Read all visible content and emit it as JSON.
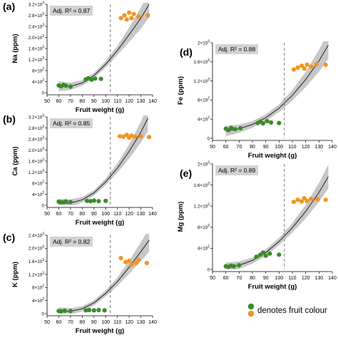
{
  "legend": {
    "colors": [
      "#3b8a2a",
      "#f29420"
    ],
    "label": "denotes fruit colour"
  },
  "style": {
    "green": "#3b8a2a",
    "orange": "#f29420",
    "ci_band": "#bdbdbd",
    "annotation_box": "#d3d3d3"
  },
  "chart_data": [
    {
      "panel": "(a)",
      "type": "scatter",
      "xlabel": "Fruit weight (g)",
      "ylabel": "Na (ppm)",
      "annotation": "Adj. R² = 0.87",
      "xlim": [
        50,
        140
      ],
      "ylim": [
        0,
        3200
      ],
      "xticks": [
        50,
        60,
        70,
        80,
        90,
        100,
        110,
        120,
        130,
        140
      ],
      "yticks": [
        0,
        400,
        800,
        1200,
        1600,
        2000,
        2400,
        2800,
        3200
      ],
      "ytick_labels": [
        "0",
        "4×10²",
        "8×10²",
        "1.2×10³",
        "1.6×10³",
        "2.0×10³",
        "2.4×10³",
        "2.8×10³",
        "3.2×10³"
      ],
      "threshold_x": 104,
      "fit": {
        "x": [
          60,
          70,
          80,
          90,
          100,
          110,
          120,
          130,
          137
        ],
        "y": [
          230,
          230,
          350,
          620,
          1030,
          1530,
          2100,
          2700,
          3200
        ]
      },
      "band_halfwidth": [
        180,
        130,
        100,
        100,
        120,
        170,
        260,
        380,
        480
      ],
      "points": [
        {
          "x": 60,
          "y": 260,
          "color": "green"
        },
        {
          "x": 62,
          "y": 230,
          "color": "green"
        },
        {
          "x": 64,
          "y": 280,
          "color": "green"
        },
        {
          "x": 66,
          "y": 250,
          "color": "green"
        },
        {
          "x": 70,
          "y": 220,
          "color": "green"
        },
        {
          "x": 83,
          "y": 480,
          "color": "green"
        },
        {
          "x": 85,
          "y": 520,
          "color": "green"
        },
        {
          "x": 88,
          "y": 470,
          "color": "green"
        },
        {
          "x": 91,
          "y": 510,
          "color": "green"
        },
        {
          "x": 96,
          "y": 500,
          "color": "green"
        },
        {
          "x": 113,
          "y": 2700,
          "color": "orange"
        },
        {
          "x": 116,
          "y": 2800,
          "color": "orange"
        },
        {
          "x": 118,
          "y": 2650,
          "color": "orange"
        },
        {
          "x": 120,
          "y": 2900,
          "color": "orange"
        },
        {
          "x": 122,
          "y": 2700,
          "color": "orange"
        },
        {
          "x": 124,
          "y": 2850,
          "color": "orange"
        },
        {
          "x": 128,
          "y": 2750,
          "color": "orange"
        },
        {
          "x": 136,
          "y": 2800,
          "color": "orange"
        }
      ]
    },
    {
      "panel": "(b)",
      "type": "scatter",
      "xlabel": "Fruit weight (g)",
      "ylabel": "Ca (ppm)",
      "annotation": "Adj. R² = 0.85",
      "xlim": [
        50,
        140
      ],
      "ylim": [
        0,
        3200
      ],
      "xticks": [
        50,
        60,
        70,
        80,
        90,
        100,
        110,
        120,
        130,
        140
      ],
      "yticks": [
        0,
        400,
        800,
        1200,
        1600,
        2000,
        2400,
        2800,
        3200
      ],
      "ytick_labels": [
        "0",
        "4×10²",
        "8×10²",
        "1.2×10³",
        "1.6×10³",
        "2.0×10³",
        "2.4×10³",
        "2.8×10³",
        "3.2×10³"
      ],
      "threshold_x": 104,
      "fit": {
        "x": [
          60,
          70,
          80,
          90,
          100,
          110,
          120,
          130,
          136
        ],
        "y": [
          60,
          80,
          200,
          450,
          850,
          1350,
          1950,
          2650,
          3150
        ]
      },
      "band_halfwidth": [
        180,
        130,
        100,
        100,
        120,
        170,
        260,
        380,
        480
      ],
      "points": [
        {
          "x": 60,
          "y": 130,
          "color": "green"
        },
        {
          "x": 63,
          "y": 110,
          "color": "green"
        },
        {
          "x": 66,
          "y": 140,
          "color": "green"
        },
        {
          "x": 70,
          "y": 120,
          "color": "green"
        },
        {
          "x": 84,
          "y": 160,
          "color": "green"
        },
        {
          "x": 87,
          "y": 150,
          "color": "green"
        },
        {
          "x": 90,
          "y": 170,
          "color": "green"
        },
        {
          "x": 94,
          "y": 150,
          "color": "green"
        },
        {
          "x": 100,
          "y": 160,
          "color": "green"
        },
        {
          "x": 112,
          "y": 2500,
          "color": "orange"
        },
        {
          "x": 115,
          "y": 2480,
          "color": "orange"
        },
        {
          "x": 118,
          "y": 2550,
          "color": "orange"
        },
        {
          "x": 120,
          "y": 2450,
          "color": "orange"
        },
        {
          "x": 122,
          "y": 2520,
          "color": "orange"
        },
        {
          "x": 125,
          "y": 2480,
          "color": "orange"
        },
        {
          "x": 130,
          "y": 2500,
          "color": "orange"
        },
        {
          "x": 137,
          "y": 2470,
          "color": "orange"
        }
      ]
    },
    {
      "panel": "(c)",
      "type": "scatter",
      "xlabel": "Fruit weight (g)",
      "ylabel": "K (ppm)",
      "annotation": "Adj. R² = 0.82",
      "xlim": [
        50,
        140
      ],
      "ylim": [
        0,
        2400
      ],
      "xticks": [
        50,
        60,
        70,
        80,
        90,
        100,
        110,
        120,
        130,
        140
      ],
      "yticks": [
        0,
        400,
        800,
        1200,
        1600,
        2000,
        2400
      ],
      "ytick_labels": [
        "0",
        "4×10²",
        "8×10²",
        "1.2×10³",
        "1.6×10³",
        "2.0×10³",
        "2.4×10³"
      ],
      "threshold_x": 104,
      "fit": {
        "x": [
          60,
          70,
          80,
          90,
          100,
          110,
          120,
          130,
          137
        ],
        "y": [
          60,
          70,
          150,
          330,
          620,
          980,
          1420,
          1900,
          2250
        ]
      },
      "band_halfwidth": [
        130,
        100,
        80,
        80,
        95,
        130,
        200,
        290,
        360
      ],
      "points": [
        {
          "x": 60,
          "y": 80,
          "color": "green"
        },
        {
          "x": 62,
          "y": 70,
          "color": "green"
        },
        {
          "x": 65,
          "y": 90,
          "color": "green"
        },
        {
          "x": 70,
          "y": 80,
          "color": "green"
        },
        {
          "x": 83,
          "y": 100,
          "color": "green"
        },
        {
          "x": 86,
          "y": 110,
          "color": "green"
        },
        {
          "x": 90,
          "y": 100,
          "color": "green"
        },
        {
          "x": 94,
          "y": 110,
          "color": "green"
        },
        {
          "x": 99,
          "y": 100,
          "color": "green"
        },
        {
          "x": 113,
          "y": 1700,
          "color": "orange"
        },
        {
          "x": 117,
          "y": 1580,
          "color": "orange"
        },
        {
          "x": 120,
          "y": 1620,
          "color": "orange"
        },
        {
          "x": 122,
          "y": 1500,
          "color": "orange"
        },
        {
          "x": 126,
          "y": 1550,
          "color": "orange"
        },
        {
          "x": 128,
          "y": 1650,
          "color": "orange"
        },
        {
          "x": 135,
          "y": 1550,
          "color": "orange"
        }
      ]
    },
    {
      "panel": "(d)",
      "type": "scatter",
      "xlabel": "Fruit weight (g)",
      "ylabel": "Fe (ppm)",
      "annotation": "Adj. R² = 0.88",
      "xlim": [
        50,
        140
      ],
      "ylim": [
        0,
        2000
      ],
      "xticks": [
        50,
        60,
        70,
        80,
        90,
        100,
        110,
        120,
        130,
        140
      ],
      "yticks": [
        0,
        400,
        800,
        1200,
        1600,
        2000
      ],
      "ytick_labels": [
        "0",
        "4×10²",
        "8×10²",
        "1.2×10³",
        "1.6×10³",
        "2×10³"
      ],
      "threshold_x": 104,
      "fit": {
        "x": [
          60,
          70,
          80,
          90,
          100,
          110,
          120,
          130,
          137
        ],
        "y": [
          150,
          200,
          290,
          430,
          630,
          900,
          1230,
          1620,
          1950
        ]
      },
      "band_halfwidth": [
        110,
        85,
        70,
        70,
        80,
        110,
        160,
        230,
        290
      ],
      "points": [
        {
          "x": 60,
          "y": 200,
          "color": "green"
        },
        {
          "x": 62,
          "y": 170,
          "color": "green"
        },
        {
          "x": 64,
          "y": 220,
          "color": "green"
        },
        {
          "x": 67,
          "y": 190,
          "color": "green"
        },
        {
          "x": 71,
          "y": 210,
          "color": "green"
        },
        {
          "x": 84,
          "y": 320,
          "color": "green"
        },
        {
          "x": 86,
          "y": 350,
          "color": "green"
        },
        {
          "x": 88,
          "y": 310,
          "color": "green"
        },
        {
          "x": 91,
          "y": 360,
          "color": "green"
        },
        {
          "x": 94,
          "y": 330,
          "color": "green"
        },
        {
          "x": 100,
          "y": 320,
          "color": "green"
        },
        {
          "x": 111,
          "y": 1440,
          "color": "orange"
        },
        {
          "x": 114,
          "y": 1480,
          "color": "orange"
        },
        {
          "x": 117,
          "y": 1520,
          "color": "orange"
        },
        {
          "x": 119,
          "y": 1460,
          "color": "orange"
        },
        {
          "x": 121,
          "y": 1540,
          "color": "orange"
        },
        {
          "x": 124,
          "y": 1500,
          "color": "orange"
        },
        {
          "x": 128,
          "y": 1550,
          "color": "orange"
        },
        {
          "x": 135,
          "y": 1540,
          "color": "orange"
        }
      ]
    },
    {
      "panel": "(e)",
      "type": "scatter",
      "xlabel": "Fruit weight (g)",
      "ylabel": "Mg (ppm)",
      "annotation": "Adj. R² = 0.89",
      "xlim": [
        50,
        140
      ],
      "ylim": [
        0,
        2000
      ],
      "xticks": [
        50,
        60,
        70,
        80,
        90,
        100,
        110,
        120,
        130,
        140
      ],
      "yticks": [
        0,
        400,
        800,
        1200,
        1600,
        2000
      ],
      "ytick_labels": [
        "0",
        "4×10²",
        "8×10²",
        "1.2×10³",
        "1.6×10³",
        "2×10³"
      ],
      "threshold_x": 104,
      "fit": {
        "x": [
          60,
          70,
          80,
          90,
          100,
          110,
          120,
          130,
          137
        ],
        "y": [
          40,
          80,
          170,
          320,
          530,
          790,
          1100,
          1460,
          1760
        ]
      },
      "band_halfwidth": [
        90,
        70,
        60,
        60,
        70,
        90,
        130,
        180,
        230
      ],
      "points": [
        {
          "x": 60,
          "y": 60,
          "color": "green"
        },
        {
          "x": 62,
          "y": 50,
          "color": "green"
        },
        {
          "x": 64,
          "y": 70,
          "color": "green"
        },
        {
          "x": 66,
          "y": 60,
          "color": "green"
        },
        {
          "x": 70,
          "y": 80,
          "color": "green"
        },
        {
          "x": 83,
          "y": 240,
          "color": "green"
        },
        {
          "x": 86,
          "y": 280,
          "color": "green"
        },
        {
          "x": 88,
          "y": 320,
          "color": "green"
        },
        {
          "x": 90,
          "y": 260,
          "color": "green"
        },
        {
          "x": 93,
          "y": 300,
          "color": "green"
        },
        {
          "x": 100,
          "y": 280,
          "color": "green"
        },
        {
          "x": 111,
          "y": 1280,
          "color": "orange"
        },
        {
          "x": 114,
          "y": 1320,
          "color": "orange"
        },
        {
          "x": 117,
          "y": 1290,
          "color": "orange"
        },
        {
          "x": 119,
          "y": 1350,
          "color": "orange"
        },
        {
          "x": 121,
          "y": 1300,
          "color": "orange"
        },
        {
          "x": 124,
          "y": 1340,
          "color": "orange"
        },
        {
          "x": 129,
          "y": 1330,
          "color": "orange"
        },
        {
          "x": 135,
          "y": 1320,
          "color": "orange"
        }
      ]
    }
  ]
}
